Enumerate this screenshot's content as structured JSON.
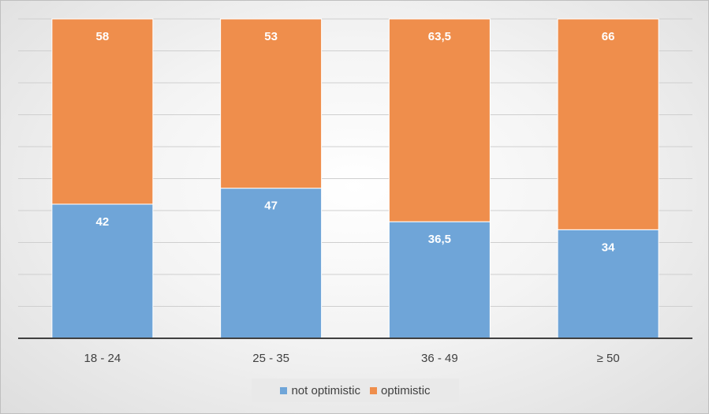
{
  "chart_data": {
    "type": "bar",
    "stacked": true,
    "categories": [
      "18 - 24",
      "25 - 35",
      "36 - 49",
      "≥ 50"
    ],
    "series": [
      {
        "name": "not optimistic",
        "values": [
          42,
          47,
          36.5,
          34
        ],
        "labels": [
          "42",
          "47",
          "36,5",
          "34"
        ],
        "color": "#6fa5d8"
      },
      {
        "name": "optimistic",
        "values": [
          58,
          53,
          63.5,
          66
        ],
        "labels": [
          "58",
          "53",
          "63,5",
          "66"
        ],
        "color": "#ef8e4c"
      }
    ],
    "title": "",
    "xlabel": "",
    "ylabel": "",
    "ylim": [
      0,
      100
    ],
    "grid": true,
    "legend": "bottom"
  }
}
